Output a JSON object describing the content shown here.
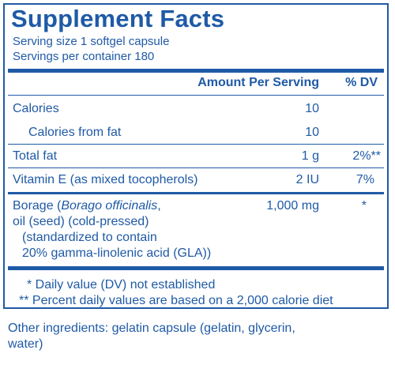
{
  "title": "Supplement Facts",
  "serving_size": "Serving size  1 softgel capsule",
  "servings_per_container": "Servings per container  180",
  "headers": {
    "amount": "Amount Per Serving",
    "dv": "% DV"
  },
  "rows": [
    {
      "label": "Calories",
      "amount": "10",
      "dv": ""
    },
    {
      "label": "Calories from fat",
      "amount": "10",
      "dv": ""
    },
    {
      "label": "Total fat",
      "amount": "1 g",
      "dv": "2%**"
    },
    {
      "label": "Vitamin E (as mixed tocopherols)",
      "amount": "2 IU",
      "dv": "7%"
    }
  ],
  "borage": {
    "line1_pre": "Borage (",
    "line1_italic": "Borago officinalis",
    "line1_post": ",",
    "line2": "oil (seed) (cold-pressed)",
    "line3": "(standardized to contain",
    "line4": "20% gamma-linolenic acid (GLA))",
    "amount": "1,000 mg",
    "dv": "*"
  },
  "footnotes": {
    "single": "* Daily value (DV) not established",
    "double": "** Percent daily values are based on a 2,000 calorie diet"
  },
  "other_ingredients": {
    "line1": "Other ingredients:  gelatin capsule (gelatin, glycerin,",
    "line2": "water)"
  },
  "colors": {
    "ink": "#1f5aa6",
    "background": "#ffffff"
  }
}
